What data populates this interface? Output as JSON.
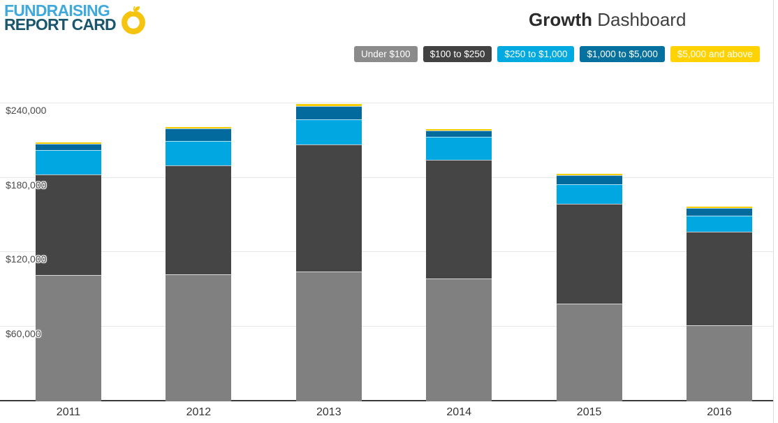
{
  "logo": {
    "line1": "FUNDRAISING",
    "line2": "REPORT CARD",
    "icon": "apple-icon",
    "apple_color": "#f5c40e"
  },
  "header": {
    "title_bold": "Growth",
    "title_regular": "Dashboard"
  },
  "legend": {
    "items": [
      {
        "label": "Under $100",
        "color": "#8b8b8b",
        "text_color": "#ffffff"
      },
      {
        "label": "$100 to $250",
        "color": "#424242",
        "text_color": "#ffffff"
      },
      {
        "label": "$250 to $1,000",
        "color": "#00a9e0",
        "text_color": "#ffffff"
      },
      {
        "label": "$1,000 to $5,000",
        "color": "#06719f",
        "text_color": "#ffffff"
      },
      {
        "label": "$5,000 and above",
        "color": "#ffd200",
        "text_color": "#ffffff"
      }
    ]
  },
  "chart_data": {
    "type": "bar",
    "stacked": true,
    "title": "Growth Dashboard",
    "xlabel": "",
    "ylabel": "",
    "categories": [
      "2011",
      "2012",
      "2013",
      "2014",
      "2015",
      "2016"
    ],
    "series": [
      {
        "name": "Under $100",
        "color": "#808080",
        "values": [
          102000,
          102500,
          104800,
          99200,
          78900,
          61400
        ]
      },
      {
        "name": "$100 to $250",
        "color": "#454545",
        "values": [
          81100,
          87900,
          102500,
          95800,
          80600,
          75500
        ]
      },
      {
        "name": "$250 to $1,000",
        "color": "#00a7e1",
        "values": [
          19700,
          19700,
          20300,
          18600,
          15800,
          13000
        ]
      },
      {
        "name": "$1,000 to $5,000",
        "color": "#026a9d",
        "values": [
          5100,
          10100,
          10700,
          5100,
          7300,
          6200
        ]
      },
      {
        "name": "$5,000 and above",
        "color": "#f6ce00",
        "values": [
          1100,
          1100,
          1700,
          1100,
          1100,
          1100
        ]
      }
    ],
    "totals": [
      209000,
      221300,
      240000,
      219800,
      183700,
      157200
    ],
    "yticks": [
      {
        "value": 240000,
        "label": "$240,000"
      },
      {
        "value": 180000,
        "label": "$180,000"
      },
      {
        "value": 120000,
        "label": "$120,000"
      },
      {
        "value": 60000,
        "label": "$60,000"
      }
    ],
    "ylim": [
      0,
      258000
    ],
    "grid": "horizontal",
    "legend_position": "top"
  }
}
